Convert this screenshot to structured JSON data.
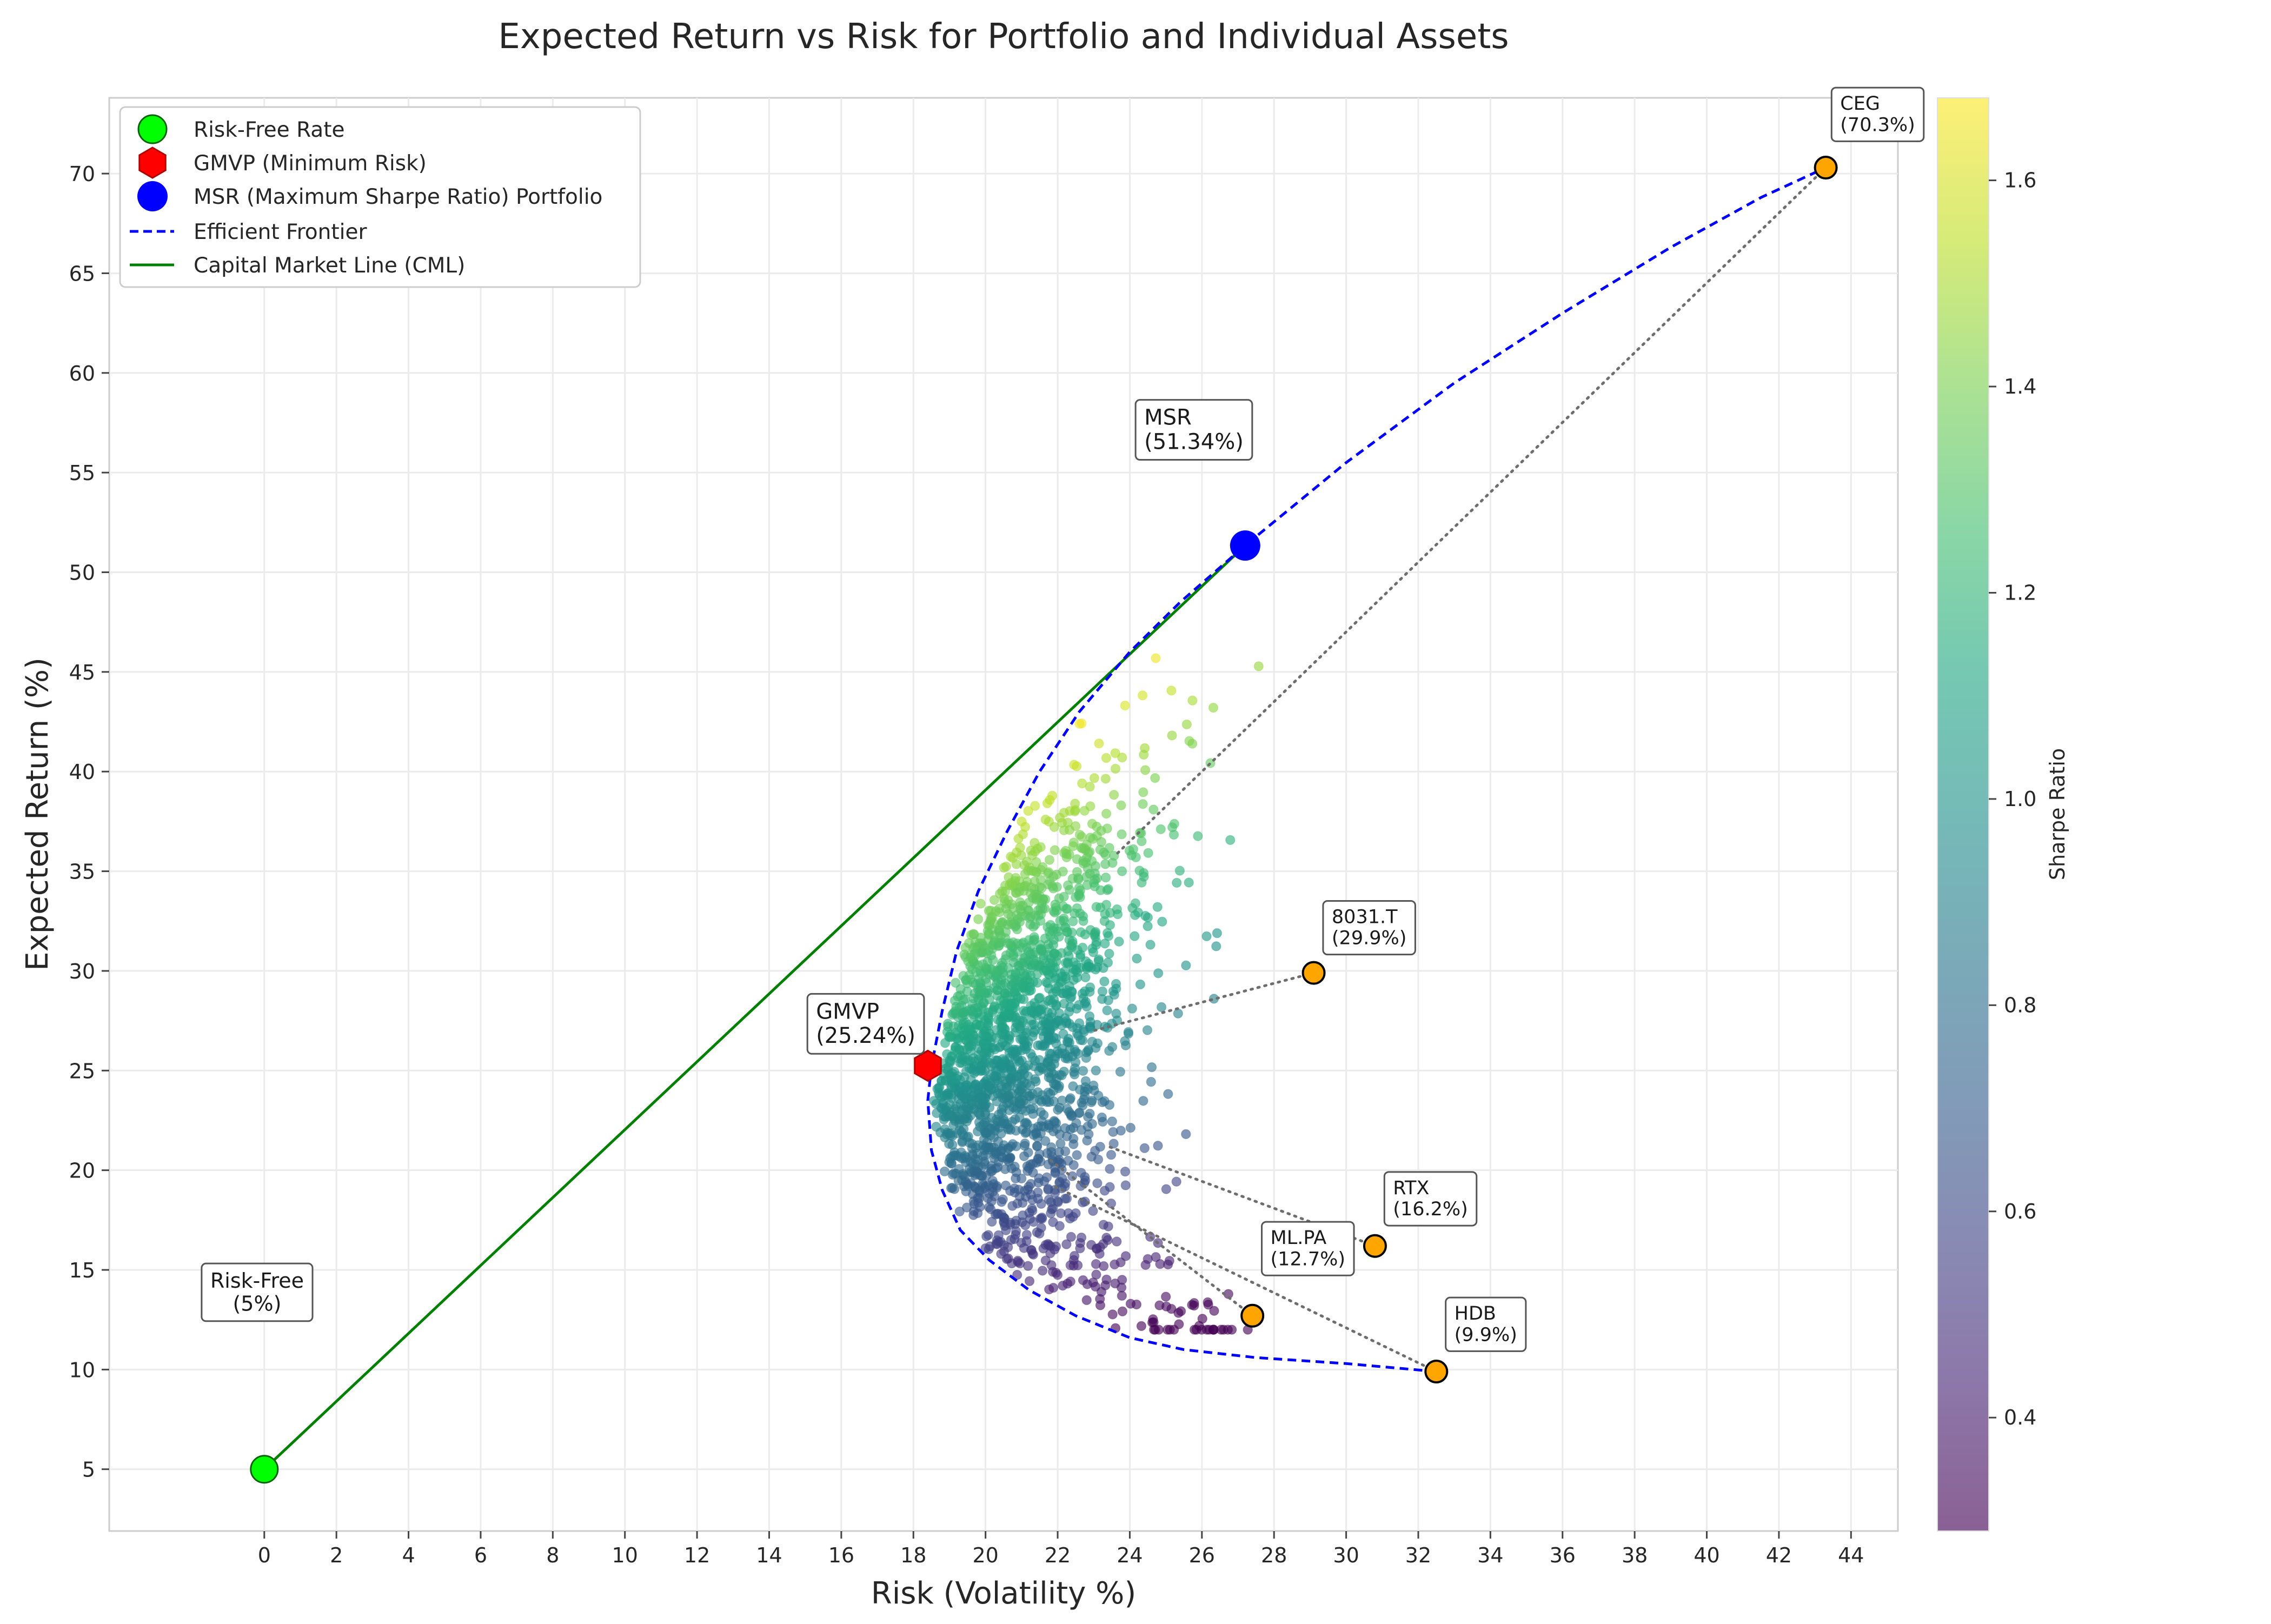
{
  "chart_data": {
    "type": "scatter",
    "title": "Expected Return vs Risk for Portfolio and Individual Assets",
    "xlabel": "Risk (Volatility %)",
    "ylabel": "Expected Return (%)",
    "xlim": [
      -4.3,
      45.3
    ],
    "ylim": [
      1.9,
      73.8
    ],
    "x_ticks": [
      0,
      2,
      4,
      6,
      8,
      10,
      12,
      14,
      16,
      18,
      20,
      22,
      24,
      26,
      28,
      30,
      32,
      34,
      36,
      38,
      40,
      42,
      44
    ],
    "y_ticks": [
      5,
      10,
      15,
      20,
      25,
      30,
      35,
      40,
      45,
      50,
      55,
      60,
      65,
      70
    ],
    "grid": true,
    "legend_position": "top-left",
    "legend": [
      {
        "label": "Risk-Free Rate",
        "marker": "circle",
        "color": "#00ff00"
      },
      {
        "label": "GMVP (Minimum Risk)",
        "marker": "hexagon",
        "color": "#ff0000"
      },
      {
        "label": "MSR (Maximum Sharpe Ratio) Portfolio",
        "marker": "circle",
        "color": "#0000ff"
      },
      {
        "label": "Efficient Frontier",
        "marker": "dashed-line",
        "color": "#0000ff"
      },
      {
        "label": "Capital Market Line (CML)",
        "marker": "line",
        "color": "#008000"
      }
    ],
    "colorbar": {
      "label": "Sharpe Ratio",
      "range": [
        0.29,
        1.68
      ],
      "ticks": [
        "0.4",
        "0.6",
        "0.8",
        "1.0",
        "1.2",
        "1.4",
        "1.6"
      ],
      "tick_values": [
        0.4,
        0.6,
        0.8,
        1.0,
        1.2,
        1.4,
        1.6
      ],
      "colormap": "viridis"
    },
    "random_portfolios": {
      "count": 2000,
      "risk_range": [
        18.3,
        29.8
      ],
      "return_range": [
        12.0,
        48.6
      ],
      "color_by": "Sharpe Ratio"
    },
    "risk_free": {
      "x": 0.0,
      "y": 5.0,
      "label": "Risk-Free\n(5%)",
      "color": "#00ff00"
    },
    "gmvp": {
      "x": 18.4,
      "y": 25.24,
      "label": "GMVP\n(25.24%)",
      "color": "#ff0000"
    },
    "msr": {
      "x": 27.2,
      "y": 51.34,
      "label": "MSR\n(51.34%)",
      "color": "#0000ff"
    },
    "assets": [
      {
        "name": "CEG",
        "x": 43.3,
        "y": 70.3,
        "label": "CEG\n(70.3%)",
        "color": "#ffa500"
      },
      {
        "name": "8031.T",
        "x": 29.1,
        "y": 29.9,
        "label": "8031.T\n(29.9%)",
        "color": "#ffa500"
      },
      {
        "name": "RTX",
        "x": 30.8,
        "y": 16.2,
        "label": "RTX\n(16.2%)",
        "color": "#ffa500"
      },
      {
        "name": "ML.PA",
        "x": 27.4,
        "y": 12.7,
        "label": "ML.PA\n(12.7%)",
        "color": "#ffa500"
      },
      {
        "name": "HDB",
        "x": 32.5,
        "y": 9.9,
        "label": "HDB\n(9.9%)",
        "color": "#ffa500"
      }
    ],
    "efficient_frontier": [
      {
        "x": 25.4,
        "y": 48.5
      },
      {
        "x": 24.0,
        "y": 46.0
      },
      {
        "x": 22.6,
        "y": 43.0
      },
      {
        "x": 21.5,
        "y": 40.0
      },
      {
        "x": 20.6,
        "y": 37.0
      },
      {
        "x": 19.8,
        "y": 34.0
      },
      {
        "x": 19.2,
        "y": 31.0
      },
      {
        "x": 18.8,
        "y": 28.0
      },
      {
        "x": 18.5,
        "y": 25.2
      },
      {
        "x": 18.4,
        "y": 23.5
      },
      {
        "x": 18.5,
        "y": 21.0
      },
      {
        "x": 18.8,
        "y": 19.0
      },
      {
        "x": 19.3,
        "y": 17.0
      },
      {
        "x": 20.1,
        "y": 15.5
      },
      {
        "x": 21.2,
        "y": 14.0
      },
      {
        "x": 22.5,
        "y": 12.7
      },
      {
        "x": 24.0,
        "y": 11.6
      },
      {
        "x": 25.5,
        "y": 11.0
      },
      {
        "x": 27.5,
        "y": 10.6
      },
      {
        "x": 30.0,
        "y": 10.3
      },
      {
        "x": 32.5,
        "y": 9.9
      }
    ],
    "frontier_upper": [
      {
        "x": 25.4,
        "y": 48.5
      },
      {
        "x": 27.2,
        "y": 51.34
      },
      {
        "x": 30.0,
        "y": 55.5
      },
      {
        "x": 33.0,
        "y": 59.5
      },
      {
        "x": 36.0,
        "y": 63.0
      },
      {
        "x": 39.0,
        "y": 66.3
      },
      {
        "x": 41.5,
        "y": 68.8
      },
      {
        "x": 43.3,
        "y": 70.3
      }
    ],
    "cml": [
      {
        "x": 0.0,
        "y": 5.0
      },
      {
        "x": 27.2,
        "y": 51.34
      }
    ]
  }
}
